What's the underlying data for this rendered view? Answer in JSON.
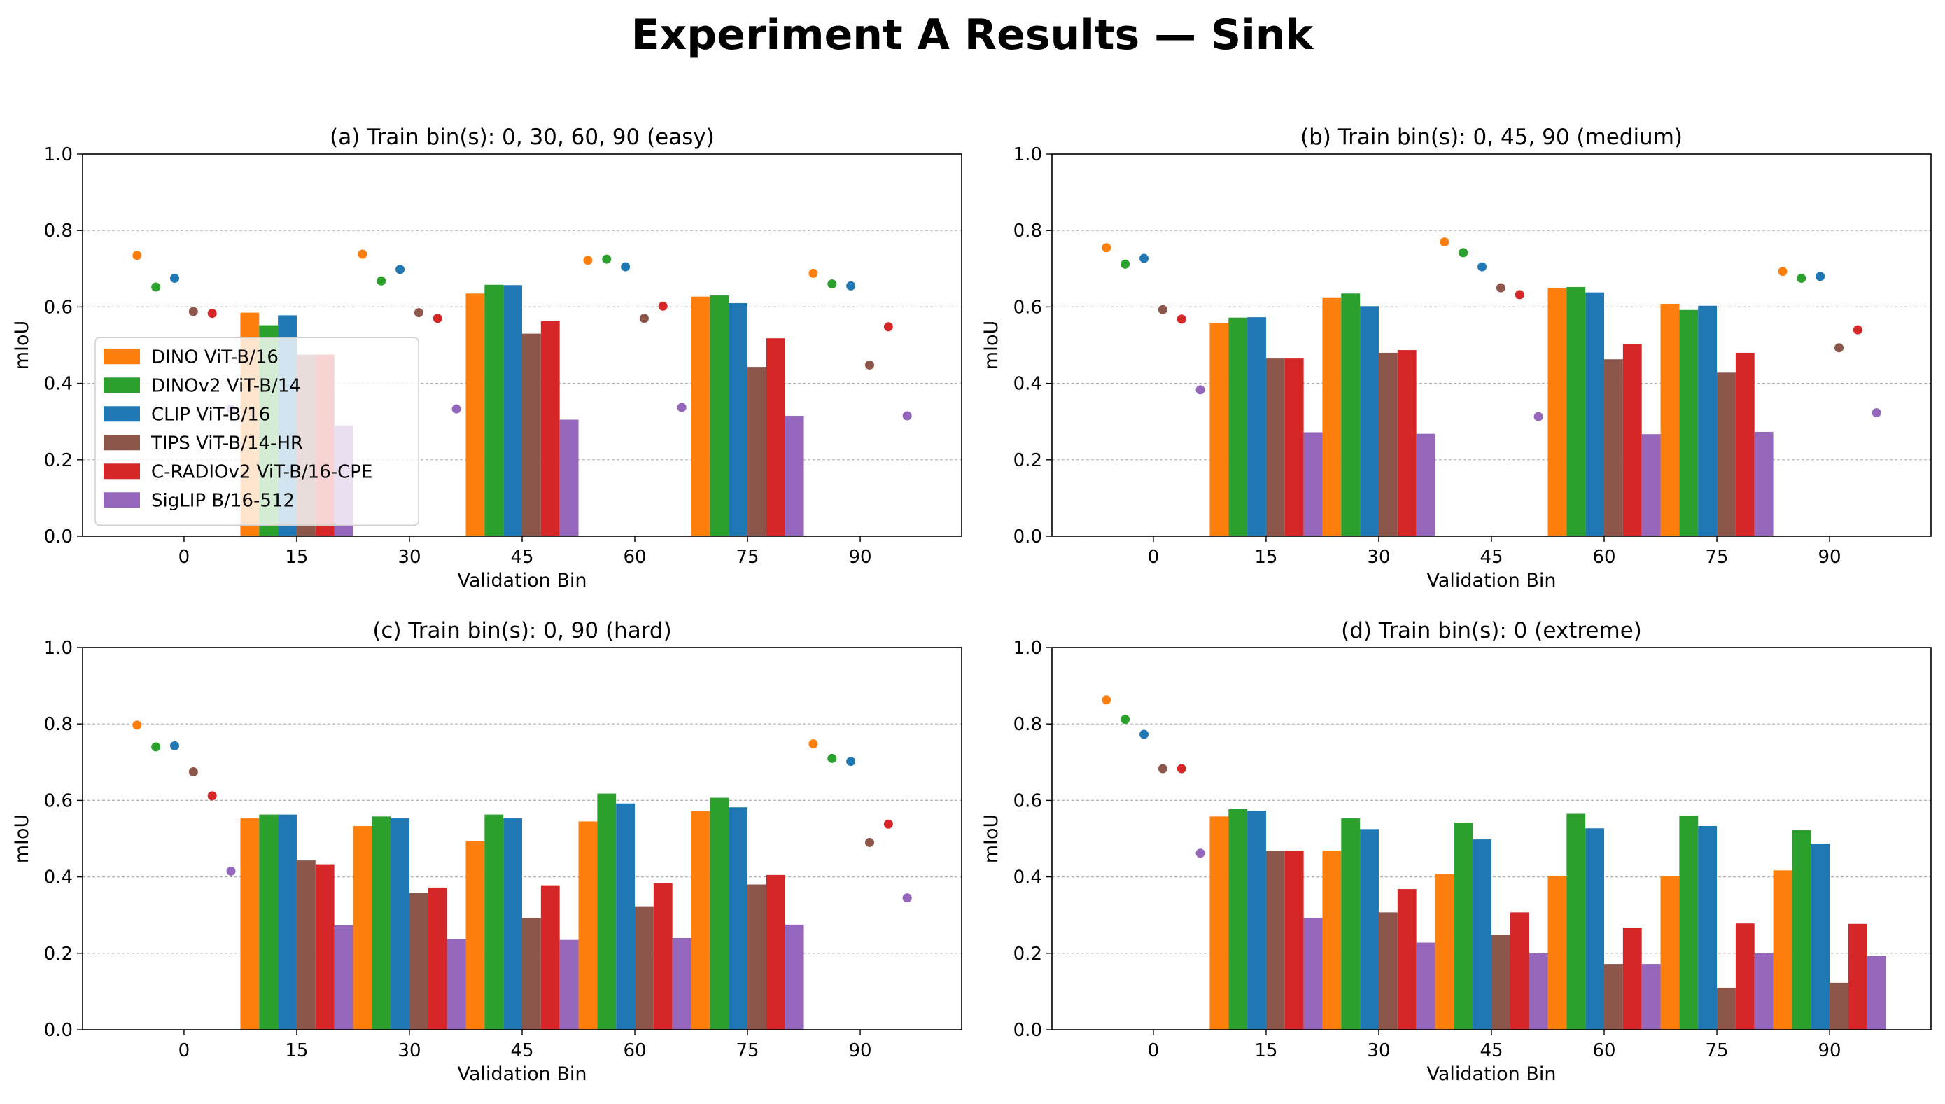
{
  "figure": {
    "title": "Experiment A Results — Sink"
  },
  "legend": {
    "location": "center-left of panel (a)",
    "entries": [
      {
        "name": "DINO ViT-B/16",
        "color": "#ff7f0e"
      },
      {
        "name": "DINOv2 ViT-B/14",
        "color": "#2ca02c"
      },
      {
        "name": "CLIP ViT-B/16",
        "color": "#1f77b4"
      },
      {
        "name": "TIPS ViT-B/14-HR",
        "color": "#8c564b"
      },
      {
        "name": "C-RADIOv2 ViT-B/16-CPE",
        "color": "#d62728"
      },
      {
        "name": "SigLIP B/16-512",
        "color": "#9467bd"
      }
    ]
  },
  "chart_data": [
    {
      "type": "bar",
      "title": "(a) Train bin(s): 0, 30, 60, 90 (easy)",
      "xlabel": "Validation Bin",
      "ylabel": "mIoU",
      "ylim": [
        0,
        1.0
      ],
      "yticks": [
        "0.0",
        "0.2",
        "0.4",
        "0.6",
        "0.8",
        "1.0"
      ],
      "grid": "y dashed",
      "categories": [
        "0",
        "15",
        "30",
        "45",
        "60",
        "75",
        "90"
      ],
      "train_bins": [
        "0",
        "30",
        "60",
        "90"
      ],
      "note": "Training bins drawn as dots, held-out bins as bars",
      "series": [
        {
          "name": "DINO ViT-B/16",
          "values": [
            0.735,
            0.585,
            0.738,
            0.635,
            0.722,
            0.627,
            0.688
          ]
        },
        {
          "name": "DINOv2 ViT-B/14",
          "values": [
            0.652,
            0.552,
            0.668,
            0.658,
            0.725,
            0.63,
            0.66
          ]
        },
        {
          "name": "CLIP ViT-B/16",
          "values": [
            0.675,
            0.578,
            0.698,
            0.657,
            0.705,
            0.61,
            0.655
          ]
        },
        {
          "name": "TIPS ViT-B/14-HR",
          "values": [
            0.588,
            0.475,
            0.585,
            0.53,
            0.57,
            0.443,
            0.448
          ]
        },
        {
          "name": "C-RADIOv2 ViT-B/16-CPE",
          "values": [
            0.583,
            0.475,
            0.57,
            0.563,
            0.602,
            0.518,
            0.548
          ]
        },
        {
          "name": "SigLIP B/16-512",
          "values": [
            0.333,
            0.29,
            0.333,
            0.305,
            0.337,
            0.315,
            0.315
          ]
        }
      ]
    },
    {
      "type": "bar",
      "title": "(b) Train bin(s): 0, 45, 90 (medium)",
      "xlabel": "Validation Bin",
      "ylabel": "mIoU",
      "ylim": [
        0,
        1.0
      ],
      "yticks": [
        "0.0",
        "0.2",
        "0.4",
        "0.6",
        "0.8",
        "1.0"
      ],
      "grid": "y dashed",
      "categories": [
        "0",
        "15",
        "30",
        "45",
        "60",
        "75",
        "90"
      ],
      "train_bins": [
        "0",
        "45",
        "90"
      ],
      "note": "Training bins drawn as dots, held-out bins as bars",
      "series": [
        {
          "name": "DINO ViT-B/16",
          "values": [
            0.755,
            0.557,
            0.625,
            0.77,
            0.65,
            0.608,
            0.693
          ]
        },
        {
          "name": "DINOv2 ViT-B/14",
          "values": [
            0.712,
            0.572,
            0.635,
            0.742,
            0.652,
            0.592,
            0.675
          ]
        },
        {
          "name": "CLIP ViT-B/16",
          "values": [
            0.727,
            0.573,
            0.602,
            0.705,
            0.638,
            0.603,
            0.68
          ]
        },
        {
          "name": "TIPS ViT-B/14-HR",
          "values": [
            0.593,
            0.465,
            0.48,
            0.65,
            0.463,
            0.428,
            0.493
          ]
        },
        {
          "name": "C-RADIOv2 ViT-B/16-CPE",
          "values": [
            0.568,
            0.465,
            0.487,
            0.632,
            0.503,
            0.48,
            0.54
          ]
        },
        {
          "name": "SigLIP B/16-512",
          "values": [
            0.383,
            0.272,
            0.268,
            0.313,
            0.267,
            0.273,
            0.323
          ]
        }
      ]
    },
    {
      "type": "bar",
      "title": "(c) Train bin(s): 0, 90 (hard)",
      "xlabel": "Validation Bin",
      "ylabel": "mIoU",
      "ylim": [
        0,
        1.0
      ],
      "yticks": [
        "0.0",
        "0.2",
        "0.4",
        "0.6",
        "0.8",
        "1.0"
      ],
      "grid": "y dashed",
      "categories": [
        "0",
        "15",
        "30",
        "45",
        "60",
        "75",
        "90"
      ],
      "train_bins": [
        "0",
        "90"
      ],
      "note": "Training bins drawn as dots, held-out bins as bars",
      "series": [
        {
          "name": "DINO ViT-B/16",
          "values": [
            0.797,
            0.553,
            0.533,
            0.493,
            0.545,
            0.572,
            0.748
          ]
        },
        {
          "name": "DINOv2 ViT-B/14",
          "values": [
            0.74,
            0.563,
            0.558,
            0.563,
            0.618,
            0.607,
            0.71
          ]
        },
        {
          "name": "CLIP ViT-B/16",
          "values": [
            0.743,
            0.563,
            0.553,
            0.553,
            0.592,
            0.582,
            0.702
          ]
        },
        {
          "name": "TIPS ViT-B/14-HR",
          "values": [
            0.675,
            0.443,
            0.358,
            0.292,
            0.323,
            0.38,
            0.49
          ]
        },
        {
          "name": "C-RADIOv2 ViT-B/16-CPE",
          "values": [
            0.612,
            0.433,
            0.372,
            0.378,
            0.383,
            0.405,
            0.538
          ]
        },
        {
          "name": "SigLIP B/16-512",
          "values": [
            0.415,
            0.273,
            0.237,
            0.235,
            0.24,
            0.275,
            0.345
          ]
        }
      ]
    },
    {
      "type": "bar",
      "title": "(d) Train bin(s): 0 (extreme)",
      "xlabel": "Validation Bin",
      "ylabel": "mIoU",
      "ylim": [
        0,
        1.0
      ],
      "yticks": [
        "0.0",
        "0.2",
        "0.4",
        "0.6",
        "0.8",
        "1.0"
      ],
      "grid": "y dashed",
      "categories": [
        "0",
        "15",
        "30",
        "45",
        "60",
        "75",
        "90"
      ],
      "train_bins": [
        "0"
      ],
      "note": "Training bins drawn as dots, held-out bins as bars",
      "series": [
        {
          "name": "DINO ViT-B/16",
          "values": [
            0.863,
            0.558,
            0.468,
            0.408,
            0.403,
            0.402,
            0.417
          ]
        },
        {
          "name": "DINOv2 ViT-B/14",
          "values": [
            0.812,
            0.577,
            0.553,
            0.542,
            0.565,
            0.56,
            0.522
          ]
        },
        {
          "name": "CLIP ViT-B/16",
          "values": [
            0.773,
            0.573,
            0.525,
            0.498,
            0.527,
            0.533,
            0.487
          ]
        },
        {
          "name": "TIPS ViT-B/14-HR",
          "values": [
            0.683,
            0.467,
            0.307,
            0.248,
            0.172,
            0.11,
            0.123
          ]
        },
        {
          "name": "C-RADIOv2 ViT-B/16-CPE",
          "values": [
            0.683,
            0.468,
            0.368,
            0.307,
            0.267,
            0.278,
            0.277
          ]
        },
        {
          "name": "SigLIP B/16-512",
          "values": [
            0.462,
            0.292,
            0.228,
            0.2,
            0.172,
            0.2,
            0.193
          ]
        }
      ]
    }
  ]
}
